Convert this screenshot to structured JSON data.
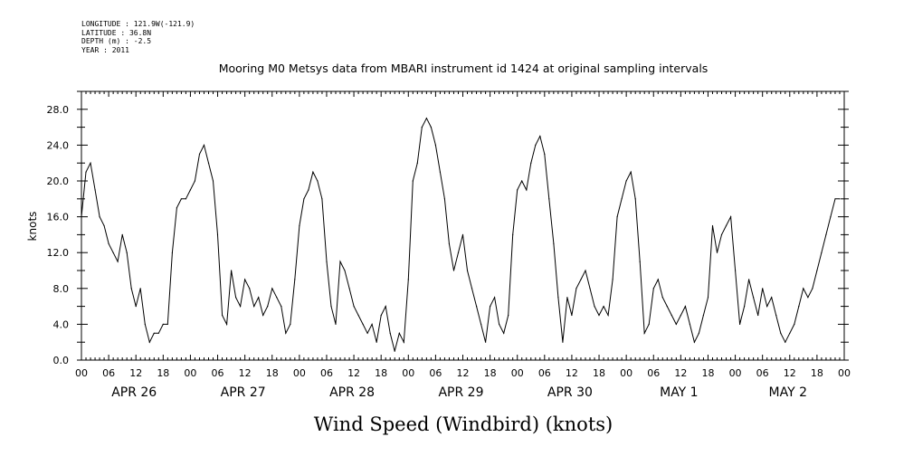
{
  "metadata": {
    "longitude": "LONGITUDE : 121.9W(-121.9)",
    "latitude": "LATITUDE : 36.8N",
    "depth": "DEPTH (m) : -2.5",
    "year": "YEAR : 2011"
  },
  "chart_data": {
    "type": "line",
    "title": "Mooring M0 Metsys data from MBARI instrument id 1424 at original sampling intervals",
    "xlabel": "Wind Speed (Windbird) (knots)",
    "ylabel": "knots",
    "ylim": [
      0,
      30
    ],
    "xlim_hours": [
      0,
      168
    ],
    "x_unit": "hours since APR 26 00:00",
    "yticks": [
      "0.0",
      "4.0",
      "8.0",
      "12.0",
      "16.0",
      "20.0",
      "24.0",
      "28.0"
    ],
    "xtick_hour_labels": [
      "00",
      "06",
      "12",
      "18",
      "00",
      "06",
      "12",
      "18",
      "00",
      "06",
      "12",
      "18",
      "00",
      "06",
      "12",
      "18",
      "00",
      "06",
      "12",
      "18",
      "00",
      "06",
      "12",
      "18",
      "00",
      "06",
      "12",
      "18",
      "00"
    ],
    "day_labels": [
      "APR 26",
      "APR 27",
      "APR 28",
      "APR 29",
      "APR 30",
      "MAY 1",
      "MAY 2"
    ],
    "grid": false,
    "series": [
      {
        "x": [
          0,
          1,
          2,
          3,
          4,
          5,
          6,
          7,
          8,
          9,
          10,
          11,
          12,
          13,
          14,
          15,
          16,
          17,
          18,
          19,
          20,
          21,
          22,
          23,
          24,
          25,
          26,
          27,
          28,
          29,
          30,
          31,
          32,
          33,
          34,
          35,
          36,
          37,
          38,
          39,
          40,
          41,
          42,
          43,
          44,
          45,
          46,
          47,
          48,
          49,
          50,
          51,
          52,
          53,
          54,
          55,
          56,
          57,
          58,
          59,
          60,
          61,
          62,
          63,
          64,
          65,
          66,
          67,
          68,
          69,
          70,
          71,
          72,
          73,
          74,
          75,
          76,
          77,
          78,
          79,
          80,
          81,
          82,
          83,
          84,
          85,
          86,
          87,
          88,
          89,
          90,
          91,
          92,
          93,
          94,
          95,
          96,
          97,
          98,
          99,
          100,
          101,
          102,
          103,
          104,
          105,
          106,
          107,
          108,
          109,
          110,
          111,
          112,
          113,
          114,
          115,
          116,
          117,
          118,
          119,
          120,
          121,
          122,
          123,
          124,
          125,
          126,
          127,
          128,
          129,
          130,
          131,
          132,
          133,
          134,
          135,
          136,
          137,
          138,
          139,
          140,
          141,
          142,
          143,
          144,
          145,
          146,
          147,
          148,
          149,
          150,
          151,
          152,
          153,
          154,
          155,
          156,
          157,
          158,
          159,
          160,
          161,
          162,
          163,
          164,
          165,
          166,
          167
        ],
        "values": [
          16,
          21,
          22,
          19,
          16,
          15,
          13,
          12,
          11,
          14,
          12,
          8,
          6,
          8,
          4,
          2,
          3,
          3,
          4,
          4,
          12,
          17,
          18,
          18,
          19,
          20,
          23,
          24,
          22,
          20,
          14,
          5,
          4,
          10,
          7,
          6,
          9,
          8,
          6,
          7,
          5,
          6,
          8,
          7,
          6,
          3,
          4,
          9,
          15,
          18,
          19,
          21,
          20,
          18,
          11,
          6,
          4,
          11,
          10,
          8,
          6,
          5,
          4,
          3,
          4,
          2,
          5,
          6,
          3,
          1,
          3,
          2,
          9,
          20,
          22,
          26,
          27,
          26,
          24,
          21,
          18,
          13,
          10,
          12,
          14,
          10,
          8,
          6,
          4,
          2,
          6,
          7,
          4,
          3,
          5,
          14,
          19,
          20,
          19,
          22,
          24,
          25,
          23,
          18,
          13,
          7,
          2,
          7,
          5,
          8,
          9,
          10,
          8,
          6,
          5,
          6,
          5,
          9,
          16,
          18,
          20,
          21,
          18,
          11,
          3,
          4,
          8,
          9,
          7,
          6,
          5,
          4,
          5,
          6,
          4,
          2,
          3,
          5,
          7,
          15,
          12,
          14,
          15,
          16,
          10,
          4,
          6,
          9,
          7,
          5,
          8,
          6,
          7,
          5,
          3,
          2,
          3,
          4,
          6,
          8,
          7,
          8,
          10,
          12,
          14,
          16,
          18,
          18
        ]
      }
    ]
  }
}
